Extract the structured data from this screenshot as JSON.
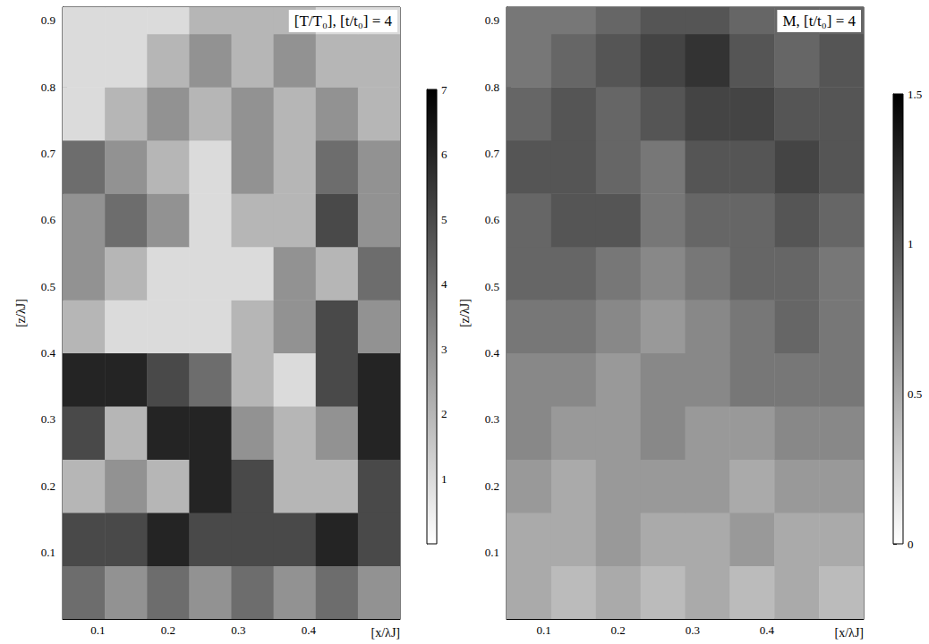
{
  "chart_data": [
    {
      "type": "heatmap",
      "title": "[T/T₀], [t/t₀] = 4",
      "xlabel": "[x/λJ]",
      "ylabel": "[z/λJ]",
      "xlim": [
        0.05,
        0.53
      ],
      "xticks": [
        0.1,
        0.2,
        0.3,
        0.4
      ],
      "ylim": [
        0,
        0.92
      ],
      "yticks": [
        0.1,
        0.2,
        0.3,
        0.4,
        0.5,
        0.6,
        0.7,
        0.8,
        0.9
      ],
      "grid": false,
      "x_edges": [
        0.05,
        0.11,
        0.17,
        0.23,
        0.29,
        0.35,
        0.41,
        0.47,
        0.53
      ],
      "y_edges": [
        0,
        0.08,
        0.16,
        0.24,
        0.32,
        0.4,
        0.48,
        0.56,
        0.64,
        0.72,
        0.8,
        0.88,
        0.92
      ],
      "cells": [
        [
          4,
          3,
          4,
          3,
          4,
          3,
          4,
          3
        ],
        [
          5,
          5,
          6,
          5,
          5,
          5,
          6,
          5
        ],
        [
          2,
          3,
          2,
          6,
          5,
          2,
          2,
          5
        ],
        [
          5,
          2,
          6,
          6,
          3,
          2,
          3,
          6
        ],
        [
          6,
          6,
          5,
          4,
          2,
          1,
          5,
          6
        ],
        [
          2,
          1,
          1,
          1,
          2,
          3,
          5,
          3
        ],
        [
          3,
          2,
          1,
          1,
          1,
          3,
          2,
          4
        ],
        [
          3,
          4,
          3,
          1,
          2,
          2,
          5,
          3
        ],
        [
          4,
          3,
          2,
          1,
          3,
          2,
          4,
          3
        ],
        [
          1,
          2,
          3,
          2,
          3,
          2,
          3,
          2
        ],
        [
          1,
          1,
          2,
          3,
          2,
          3,
          2,
          2
        ],
        [
          1,
          1,
          1,
          2,
          2,
          2,
          1,
          1
        ]
      ],
      "colorbar_range": [
        0,
        7
      ],
      "colorbar_ticks": [
        1,
        2,
        3,
        4,
        5,
        6,
        7
      ],
      "colors": [
        "#ffffff",
        "#000000"
      ]
    },
    {
      "type": "heatmap",
      "title": "M, [t/t₀] = 4",
      "xlabel": "[x/λJ]",
      "ylabel": "[z/λJ]",
      "xlim": [
        0.05,
        0.53
      ],
      "xticks": [
        0.1,
        0.2,
        0.3,
        0.4
      ],
      "ylim": [
        0,
        0.92
      ],
      "yticks": [
        0.1,
        0.2,
        0.3,
        0.4,
        0.5,
        0.6,
        0.7,
        0.8,
        0.9
      ],
      "grid": false,
      "x_edges": [
        0.05,
        0.11,
        0.17,
        0.23,
        0.29,
        0.35,
        0.41,
        0.47,
        0.53
      ],
      "y_edges": [
        0,
        0.08,
        0.16,
        0.24,
        0.32,
        0.4,
        0.48,
        0.56,
        0.64,
        0.72,
        0.8,
        0.88,
        0.92
      ],
      "cells": [
        [
          0.5,
          0.4,
          0.5,
          0.4,
          0.5,
          0.4,
          0.5,
          0.4
        ],
        [
          0.5,
          0.5,
          0.6,
          0.5,
          0.5,
          0.6,
          0.5,
          0.5
        ],
        [
          0.6,
          0.5,
          0.6,
          0.6,
          0.6,
          0.5,
          0.6,
          0.6
        ],
        [
          0.7,
          0.6,
          0.6,
          0.7,
          0.6,
          0.6,
          0.7,
          0.7
        ],
        [
          0.7,
          0.7,
          0.6,
          0.7,
          0.7,
          0.8,
          0.8,
          0.8
        ],
        [
          0.8,
          0.8,
          0.7,
          0.6,
          0.7,
          0.8,
          0.9,
          0.8
        ],
        [
          0.9,
          0.9,
          0.8,
          0.7,
          0.8,
          0.9,
          0.9,
          0.8
        ],
        [
          0.9,
          1.0,
          1.0,
          0.8,
          0.9,
          0.9,
          1.0,
          0.9
        ],
        [
          1.0,
          1.0,
          0.9,
          0.8,
          1.0,
          1.0,
          1.1,
          1.0
        ],
        [
          0.9,
          1.0,
          0.9,
          1.0,
          1.1,
          1.1,
          1.0,
          1.0
        ],
        [
          0.8,
          0.9,
          1.0,
          1.1,
          1.2,
          1.0,
          0.9,
          1.0
        ],
        [
          0.8,
          0.8,
          0.9,
          1.0,
          1.0,
          0.9,
          0.9,
          0.9
        ]
      ],
      "colorbar_range": [
        0,
        1.5
      ],
      "colorbar_ticks": [
        0,
        0.5,
        1,
        1.5
      ],
      "colors": [
        "#ffffff",
        "#000000"
      ]
    }
  ]
}
